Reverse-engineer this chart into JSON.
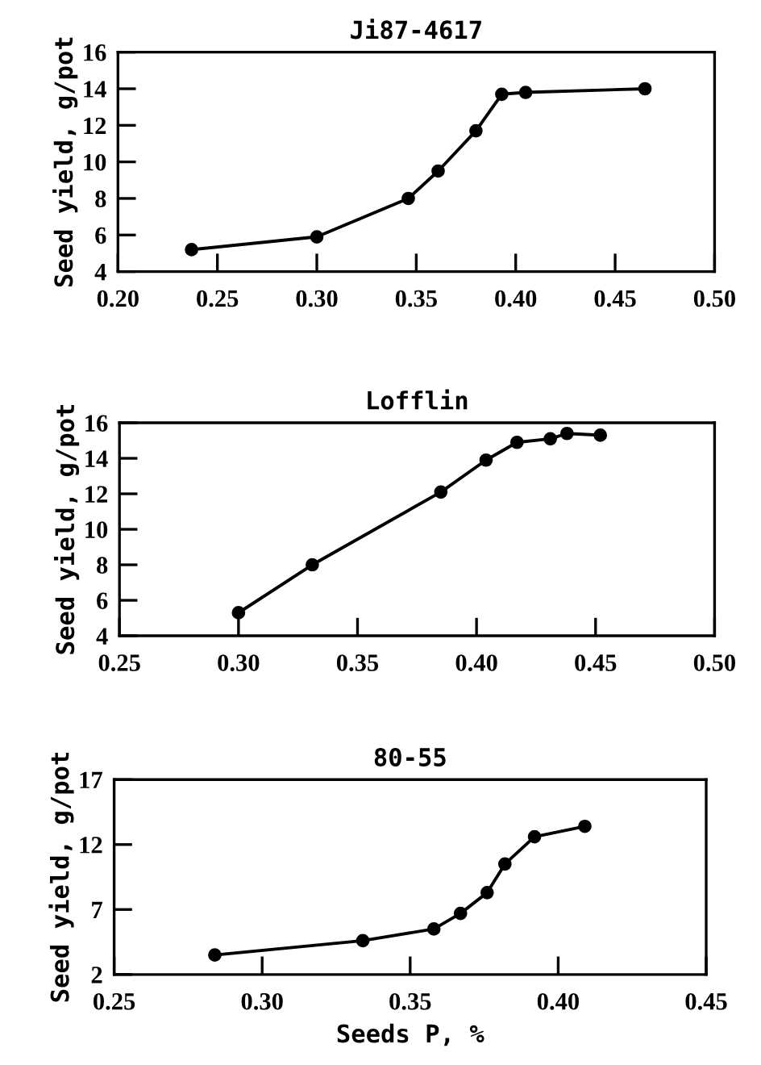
{
  "chart_data": [
    {
      "type": "line",
      "title": "Ji87-4617",
      "ylabel": "Seed yield, g/pot",
      "x": [
        0.237,
        0.3,
        0.346,
        0.361,
        0.38,
        0.393,
        0.405,
        0.465
      ],
      "series": [
        {
          "color": "#000000",
          "values": [
            5.2,
            5.9,
            8.0,
            9.5,
            11.7,
            13.7,
            13.8,
            14.0
          ]
        }
      ],
      "xlim": [
        0.2,
        0.5
      ],
      "ylim": [
        4,
        16
      ],
      "xticks": [
        {
          "value": 0.2,
          "label": "0.20"
        },
        {
          "value": 0.25,
          "label": "0.25"
        },
        {
          "value": 0.3,
          "label": "0.30"
        },
        {
          "value": 0.35,
          "label": "0.35"
        },
        {
          "value": 0.4,
          "label": "0.40"
        },
        {
          "value": 0.45,
          "label": "0.45"
        },
        {
          "value": 0.5,
          "label": "0.50"
        }
      ],
      "yticks": [
        4,
        6,
        8,
        10,
        12,
        14,
        16
      ],
      "marker": "circle",
      "line_style": "solid"
    },
    {
      "type": "line",
      "title": "Lofflin",
      "ylabel": "Seed yield, g/pot",
      "x": [
        0.3,
        0.331,
        0.385,
        0.404,
        0.417,
        0.431,
        0.438,
        0.452
      ],
      "series": [
        {
          "color": "#000000",
          "values": [
            5.3,
            8.0,
            12.1,
            13.9,
            14.9,
            15.1,
            15.4,
            15.3
          ]
        }
      ],
      "xlim": [
        0.25,
        0.5
      ],
      "ylim": [
        4,
        16
      ],
      "xticks": [
        {
          "value": 0.25,
          "label": "0.25"
        },
        {
          "value": 0.3,
          "label": "0.30"
        },
        {
          "value": 0.35,
          "label": "0.35"
        },
        {
          "value": 0.4,
          "label": "0.40"
        },
        {
          "value": 0.45,
          "label": "0.45"
        },
        {
          "value": 0.5,
          "label": "0.50"
        }
      ],
      "yticks": [
        4,
        6,
        8,
        10,
        12,
        14,
        16
      ],
      "marker": "circle",
      "line_style": "solid"
    },
    {
      "type": "line",
      "title": "80-55",
      "ylabel": "Seed yield, g/pot",
      "xlabel": "Seeds P, %",
      "x": [
        0.284,
        0.334,
        0.358,
        0.367,
        0.376,
        0.382,
        0.392,
        0.409
      ],
      "series": [
        {
          "color": "#000000",
          "values": [
            3.5,
            4.6,
            5.5,
            6.7,
            8.3,
            10.5,
            12.6,
            13.4
          ]
        }
      ],
      "xlim": [
        0.25,
        0.45
      ],
      "ylim": [
        2,
        17
      ],
      "xticks": [
        {
          "value": 0.25,
          "label": "0.25"
        },
        {
          "value": 0.3,
          "label": "0.30"
        },
        {
          "value": 0.35,
          "label": "0.35"
        },
        {
          "value": 0.4,
          "label": "0.40"
        },
        {
          "value": 0.45,
          "label": "0.45"
        }
      ],
      "yticks": [
        2,
        7,
        12,
        17
      ],
      "marker": "circle",
      "line_style": "solid"
    }
  ]
}
